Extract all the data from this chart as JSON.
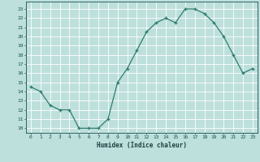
{
  "x": [
    0,
    1,
    2,
    3,
    4,
    5,
    6,
    7,
    8,
    9,
    10,
    11,
    12,
    13,
    14,
    15,
    16,
    17,
    18,
    19,
    20,
    21,
    22,
    23
  ],
  "y": [
    14.5,
    14.0,
    12.5,
    12.0,
    12.0,
    10.0,
    10.0,
    10.0,
    11.0,
    15.0,
    16.5,
    18.5,
    20.5,
    21.5,
    22.0,
    21.5,
    23.0,
    23.0,
    22.5,
    21.5,
    20.0,
    18.0,
    16.0,
    16.5
  ],
  "xlabel": "Humidex (Indice chaleur)",
  "ylabel": "",
  "xlim": [
    -0.5,
    23.5
  ],
  "ylim": [
    9.5,
    23.8
  ],
  "yticks": [
    10,
    11,
    12,
    13,
    14,
    15,
    16,
    17,
    18,
    19,
    20,
    21,
    22,
    23
  ],
  "xticks": [
    0,
    1,
    2,
    3,
    4,
    5,
    6,
    7,
    8,
    9,
    10,
    11,
    12,
    13,
    14,
    15,
    16,
    17,
    18,
    19,
    20,
    21,
    22,
    23
  ],
  "line_color": "#2E7D6E",
  "marker_color": "#2E7D6E",
  "bg_color": "#BDE0DC",
  "grid_color": "#FFFFFF",
  "tick_color": "#1A5050",
  "label_color": "#1A4040",
  "tick_fontsize": 4.5,
  "xlabel_fontsize": 5.5,
  "linewidth": 0.9,
  "markersize": 3.0
}
